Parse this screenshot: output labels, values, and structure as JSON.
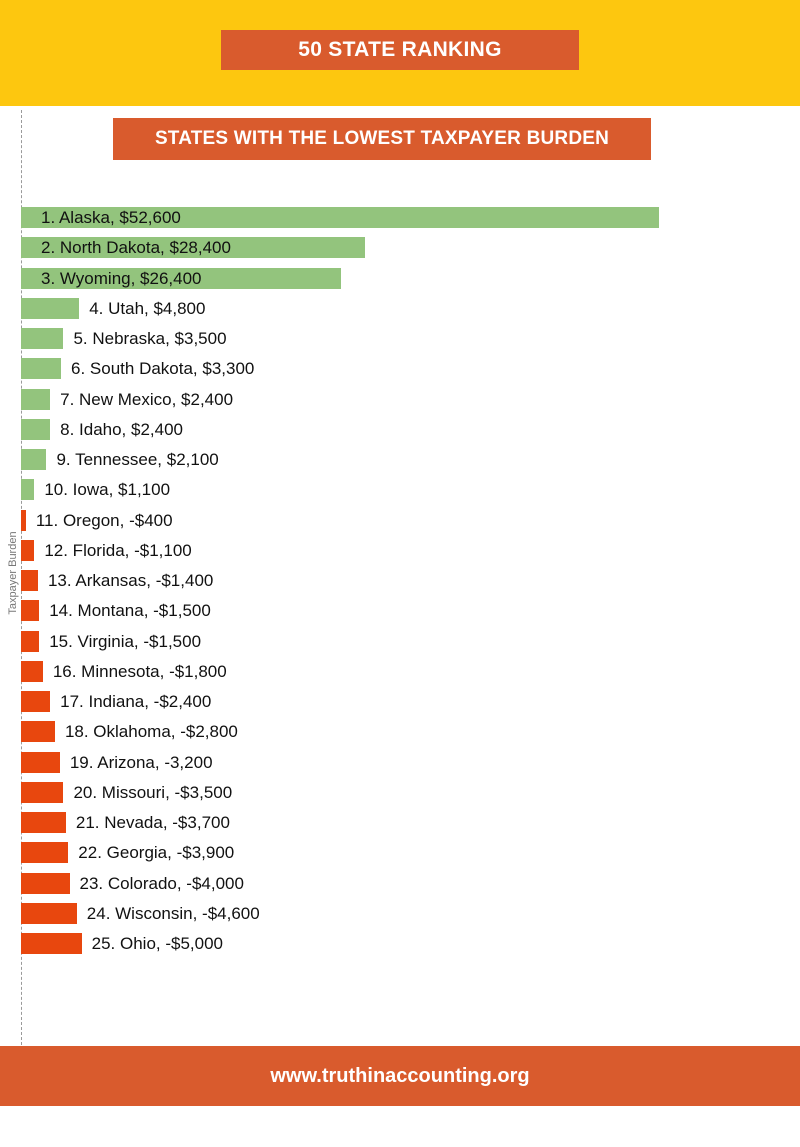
{
  "header": {
    "title": "50 STATE RANKING"
  },
  "chart_data": {
    "type": "bar",
    "orientation": "horizontal",
    "title": "STATES WITH THE LOWEST TAXPAYER BURDEN",
    "ylabel": "Taxpayer Burden",
    "colors": {
      "positive": "#93c47d",
      "negative": "#e8470e"
    },
    "categories": [
      "Alaska",
      "North Dakota",
      "Wyoming",
      "Utah",
      "Nebraska",
      "South Dakota",
      "New Mexico",
      "Idaho",
      "Tennessee",
      "Iowa",
      "Oregon",
      "Florida",
      "Arkansas",
      "Montana",
      "Virginia",
      "Minnesota",
      "Indiana",
      "Oklahoma",
      "Arizona",
      "Missouri",
      "Nevada",
      "Georgia",
      "Colorado",
      "Wisconsin",
      "Ohio"
    ],
    "values": [
      52600,
      28400,
      26400,
      4800,
      3500,
      3300,
      2400,
      2400,
      2100,
      1100,
      -400,
      -1100,
      -1400,
      -1500,
      -1500,
      -1800,
      -2400,
      -2800,
      -3200,
      -3500,
      -3700,
      -3900,
      -4000,
      -4600,
      -5000
    ],
    "labels": [
      "1. Alaska, $52,600",
      "2. North Dakota, $28,400",
      "3. Wyoming, $26,400",
      "4. Utah, $4,800",
      "5. Nebraska, $3,500",
      "6. South Dakota, $3,300",
      "7. New Mexico, $2,400",
      "8. Idaho, $2,400",
      "9. Tennessee, $2,100",
      "10. Iowa, $1,100",
      "11. Oregon, -$400",
      "12. Florida, -$1,100",
      "13. Arkansas, -$1,400",
      "14. Montana, -$1,500",
      "15. Virginia, -$1,500",
      "16. Minnesota, -$1,800",
      "17. Indiana, -$2,400",
      "18. Oklahoma, -$2,800",
      "19. Arizona, -3,200",
      "20. Missouri, -$3,500",
      "21. Nevada, -$3,700",
      "22. Georgia, -$3,900",
      "23. Colorado, -$4,000",
      "24. Wisconsin, -$4,600",
      "25. Ohio, -$5,000"
    ]
  },
  "footer": {
    "url": "www.truthinaccounting.org"
  }
}
